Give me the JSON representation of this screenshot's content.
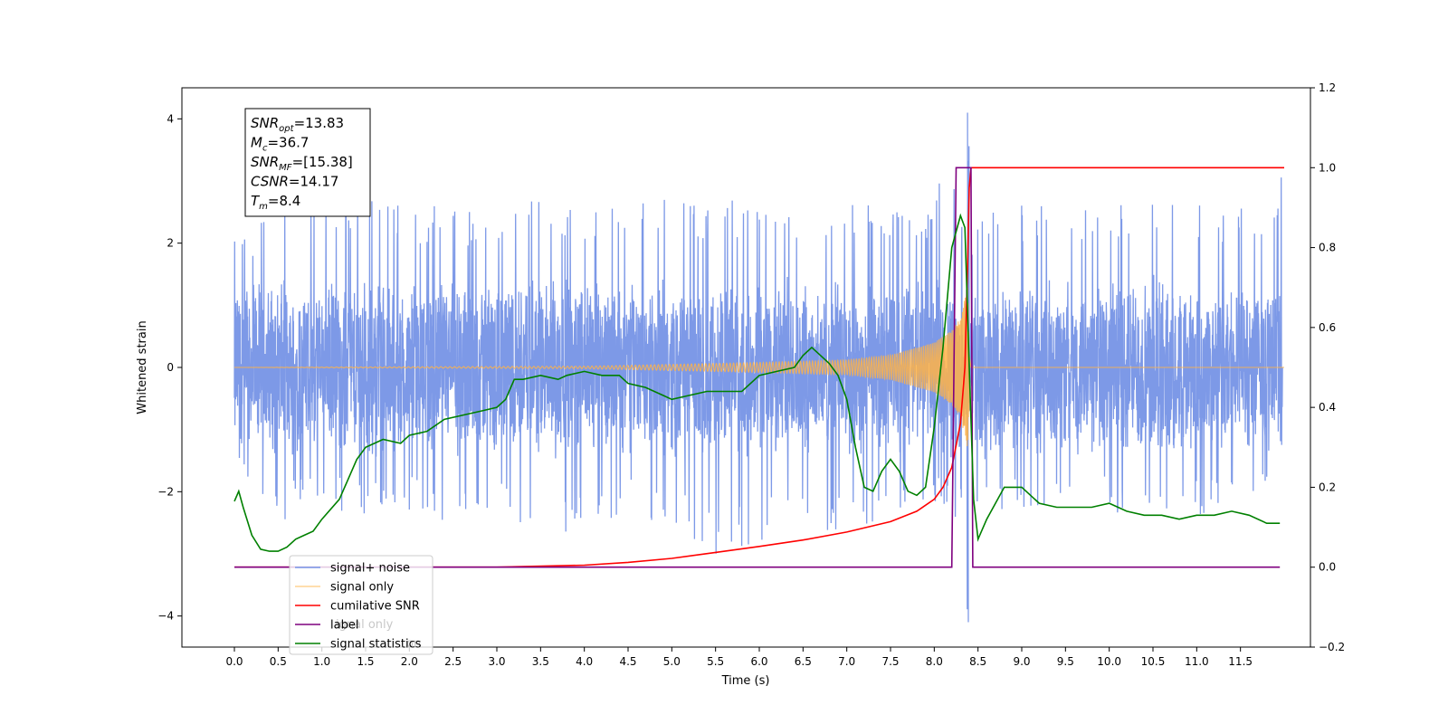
{
  "chart_data": {
    "type": "line",
    "xlabel": "Time (s)",
    "ylabel": "Whitened strain",
    "xlim": [
      -0.6,
      12.3
    ],
    "ylim": [
      -4.5,
      4.5
    ],
    "y2lim": [
      -0.2,
      1.2
    ],
    "x_ticks": [
      0.0,
      0.5,
      1.0,
      1.5,
      2.0,
      2.5,
      3.0,
      3.5,
      4.0,
      4.5,
      5.0,
      5.5,
      6.0,
      6.5,
      7.0,
      7.5,
      8.0,
      8.5,
      9.0,
      9.5,
      10.0,
      10.5,
      11.0,
      11.5
    ],
    "x_tick_labels": [
      "0.0",
      "0.5",
      "1.0",
      "1.5",
      "2.0",
      "2.5",
      "3.0",
      "3.5",
      "4.0",
      "4.5",
      "5.0",
      "5.5",
      "6.0",
      "6.5",
      "7.0",
      "7.5",
      "8.0",
      "8.5",
      "9.0",
      "9.5",
      "10.0",
      "10.5",
      "11.0",
      "11.5"
    ],
    "y_ticks": [
      4,
      2,
      0,
      -2,
      -4
    ],
    "y_tick_labels": [
      "4",
      "2",
      "0",
      "−2",
      "−4"
    ],
    "y2_ticks": [
      1.2,
      1.0,
      0.8,
      0.6,
      0.4,
      0.2,
      0.0,
      -0.2
    ],
    "y2_tick_labels": [
      "1.2",
      "1.0",
      "0.8",
      "0.6",
      "0.4",
      "0.2",
      "0.0",
      "−0.2"
    ],
    "grid": false,
    "legend_position": "lower-left",
    "series": [
      {
        "name": "signal+ noise",
        "axis": "left",
        "color": "#7693e6",
        "noise_band": [
          -1.5,
          1.5
        ],
        "x": [
          0.0,
          0.5,
          1.0,
          1.5,
          2.0,
          2.5,
          3.0,
          3.5,
          4.0,
          4.5,
          5.0,
          5.5,
          6.0,
          6.5,
          7.0,
          7.5,
          8.0,
          8.2,
          8.3,
          8.35,
          8.38,
          8.4,
          8.42,
          8.45,
          8.5,
          9.0,
          9.5,
          10.0,
          10.5,
          11.0,
          11.5,
          11.98
        ],
        "peak_max": [
          2.2,
          2.6,
          2.7,
          2.9,
          2.6,
          2.6,
          2.6,
          2.8,
          2.7,
          2.6,
          2.8,
          2.7,
          2.8,
          2.7,
          2.7,
          2.6,
          2.7,
          3.6,
          2.4,
          2.5,
          4.1,
          3.7,
          2.3,
          2.0,
          2.6,
          2.7,
          2.6,
          2.7,
          2.7,
          2.7,
          2.6,
          3.1
        ],
        "peak_min": [
          -1.7,
          -2.5,
          -2.3,
          -2.4,
          -2.3,
          -2.6,
          -2.3,
          -2.9,
          -2.6,
          -2.4,
          -2.5,
          -3.1,
          -2.8,
          -2.7,
          -2.6,
          -2.5,
          -2.2,
          -2.5,
          -2.3,
          -2.4,
          -4.1,
          -3.2,
          -2.3,
          -2.2,
          -2.4,
          -2.3,
          -2.2,
          -2.3,
          -2.5,
          -2.4,
          -2.3,
          -1.5
        ]
      },
      {
        "name": "signal only",
        "axis": "left",
        "color": "#ffb347",
        "x": [
          0.0,
          4.0,
          5.0,
          6.0,
          7.0,
          7.5,
          8.0,
          8.2,
          8.3,
          8.38,
          8.42,
          8.5,
          12.0
        ],
        "amplitude": [
          0.0,
          0.02,
          0.05,
          0.08,
          0.12,
          0.2,
          0.4,
          0.6,
          0.8,
          1.3,
          0.0,
          0.0,
          0.0
        ]
      },
      {
        "name": "cumilative SNR",
        "axis": "right",
        "color": "#ff0000",
        "x": [
          0.0,
          3.0,
          4.0,
          4.5,
          5.0,
          5.5,
          6.0,
          6.5,
          7.0,
          7.5,
          7.8,
          8.0,
          8.1,
          8.2,
          8.3,
          8.35,
          8.38,
          8.4,
          8.42,
          12.0
        ],
        "values": [
          0.0,
          0.0,
          0.005,
          0.012,
          0.022,
          0.037,
          0.052,
          0.068,
          0.088,
          0.114,
          0.14,
          0.17,
          0.2,
          0.25,
          0.36,
          0.5,
          0.75,
          0.95,
          1.0,
          1.0
        ]
      },
      {
        "name": "label",
        "axis": "right",
        "color": "#7f007f",
        "x": [
          0.0,
          8.2,
          8.25,
          8.42,
          8.44,
          11.95
        ],
        "values": [
          0.0,
          0.0,
          1.0,
          1.0,
          0.0,
          0.0
        ]
      },
      {
        "name": "signal statistics",
        "axis": "right",
        "color": "#008000",
        "x": [
          0.0,
          0.05,
          0.1,
          0.2,
          0.3,
          0.4,
          0.5,
          0.6,
          0.7,
          0.8,
          0.9,
          1.0,
          1.2,
          1.4,
          1.5,
          1.7,
          1.9,
          2.0,
          2.2,
          2.4,
          2.6,
          2.8,
          3.0,
          3.1,
          3.2,
          3.3,
          3.5,
          3.7,
          3.8,
          4.0,
          4.2,
          4.4,
          4.5,
          4.7,
          4.9,
          5.0,
          5.2,
          5.4,
          5.6,
          5.8,
          6.0,
          6.2,
          6.4,
          6.5,
          6.6,
          6.7,
          6.8,
          6.9,
          7.0,
          7.1,
          7.2,
          7.3,
          7.4,
          7.5,
          7.6,
          7.7,
          7.8,
          7.9,
          8.0,
          8.1,
          8.2,
          8.3,
          8.35,
          8.4,
          8.45,
          8.5,
          8.6,
          8.8,
          9.0,
          9.2,
          9.4,
          9.6,
          9.8,
          10.0,
          10.2,
          10.4,
          10.6,
          10.8,
          11.0,
          11.2,
          11.4,
          11.6,
          11.8,
          11.95
        ],
        "values": [
          0.165,
          0.19,
          0.15,
          0.08,
          0.045,
          0.04,
          0.04,
          0.05,
          0.07,
          0.08,
          0.09,
          0.12,
          0.17,
          0.27,
          0.3,
          0.32,
          0.31,
          0.33,
          0.34,
          0.37,
          0.38,
          0.39,
          0.4,
          0.42,
          0.47,
          0.47,
          0.48,
          0.47,
          0.48,
          0.49,
          0.48,
          0.48,
          0.46,
          0.45,
          0.43,
          0.42,
          0.43,
          0.44,
          0.44,
          0.44,
          0.48,
          0.49,
          0.5,
          0.53,
          0.55,
          0.53,
          0.51,
          0.48,
          0.42,
          0.3,
          0.2,
          0.19,
          0.24,
          0.27,
          0.24,
          0.19,
          0.18,
          0.2,
          0.35,
          0.55,
          0.8,
          0.88,
          0.85,
          0.5,
          0.17,
          0.07,
          0.12,
          0.2,
          0.2,
          0.16,
          0.15,
          0.15,
          0.15,
          0.16,
          0.14,
          0.13,
          0.13,
          0.12,
          0.13,
          0.13,
          0.14,
          0.13,
          0.11,
          0.11
        ]
      }
    ],
    "annotation_box": [
      {
        "sym": "SNR",
        "sub": "opt",
        "value": "=13.83"
      },
      {
        "sym": "M",
        "sub": "c",
        "value": "=36.7"
      },
      {
        "sym": "SNR",
        "sub": "MF",
        "value": "=[15.38]"
      },
      {
        "sym": "CSNR",
        "sub": "",
        "value": "=14.17"
      },
      {
        "sym": "T",
        "sub": "m",
        "value": "=8.4"
      }
    ],
    "legend_entries": [
      "signal+ noise",
      "signal only",
      "cumilative SNR",
      "label",
      "signal statistics"
    ],
    "legend_ghost_text": [
      "ignal only",
      "on"
    ]
  }
}
